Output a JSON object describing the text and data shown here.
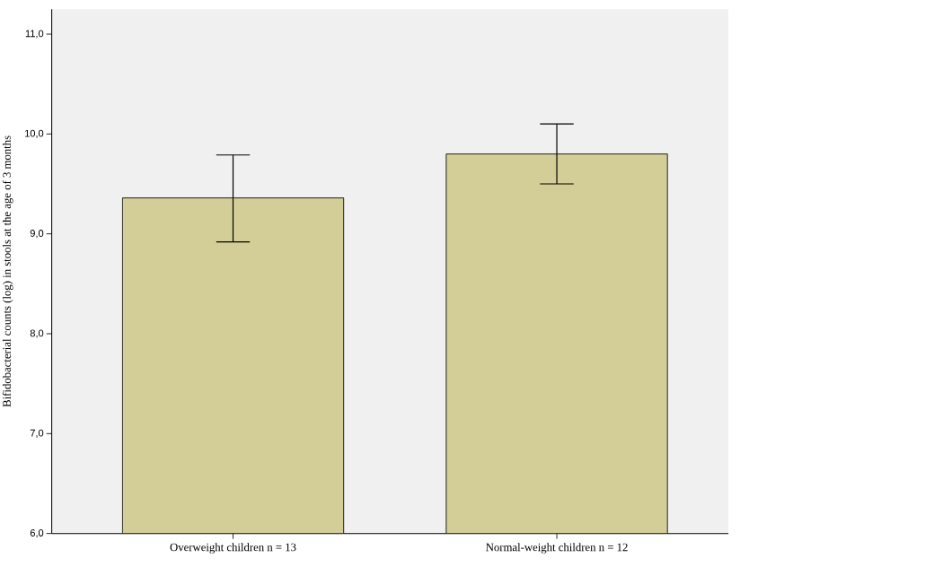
{
  "chart_data": {
    "type": "bar",
    "ylabel": "Bifidobacterial counts (log) in stools at the age of 3 months",
    "categories": [
      "Overweight children n = 13",
      "Normal-weight children n = 12"
    ],
    "values": [
      9.36,
      9.8
    ],
    "errors": [
      [
        8.92,
        9.79
      ],
      [
        9.5,
        10.1
      ]
    ],
    "color": "#d3ce97",
    "ylim": [
      6,
      11.25
    ],
    "yticks": [
      {
        "value": 6,
        "label": "6,0"
      },
      {
        "value": 7,
        "label": "7,0"
      },
      {
        "value": 8,
        "label": "8,0"
      },
      {
        "value": 9,
        "label": "9,0"
      },
      {
        "value": 10,
        "label": "10,0"
      },
      {
        "value": 11,
        "label": "11,0"
      }
    ],
    "grid": false
  }
}
